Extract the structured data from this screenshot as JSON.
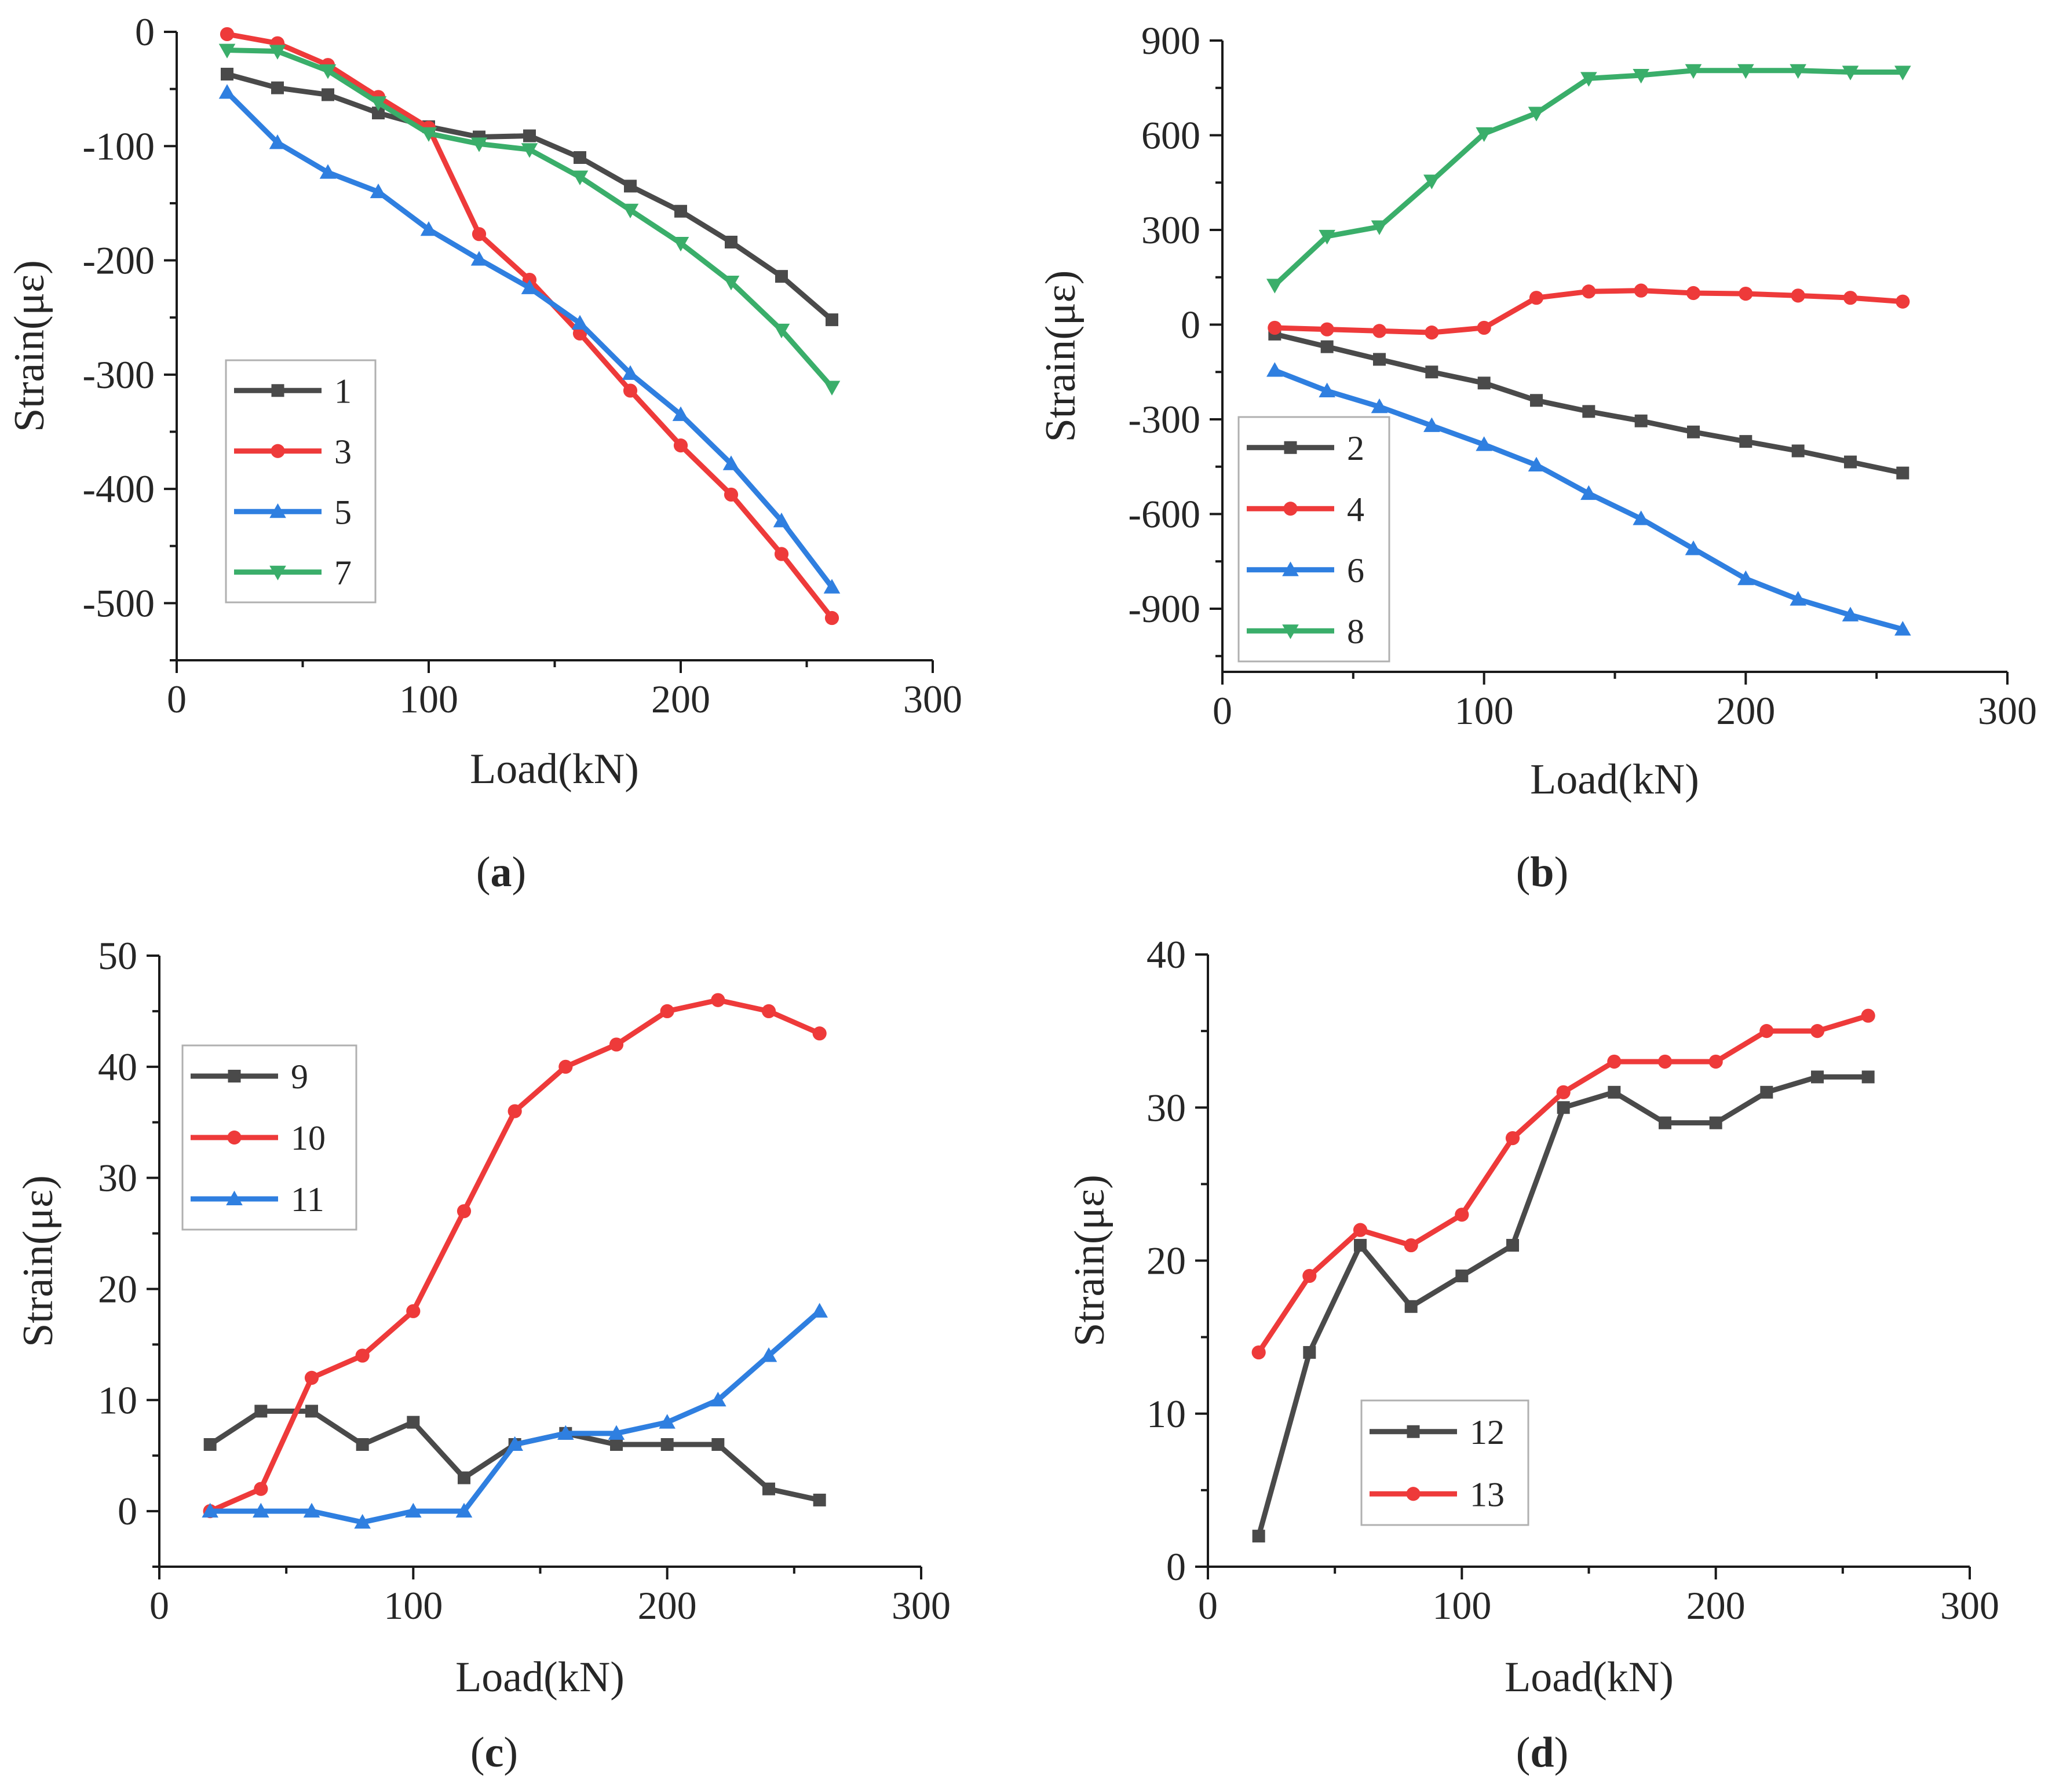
{
  "chart_data": [
    {
      "type": "line",
      "panel_label": "a",
      "xlabel": "Load(kN)",
      "ylabel": "Strain(με)",
      "xlim": [
        0,
        300
      ],
      "ylim": [
        -550,
        0
      ],
      "xticks": [
        0,
        100,
        200,
        300
      ],
      "yticks": [
        0,
        -100,
        -200,
        -300,
        -400,
        -500
      ],
      "x": [
        20,
        40,
        60,
        80,
        100,
        120,
        140,
        160,
        180,
        200,
        220,
        240,
        260
      ],
      "legend_position": "middle-left",
      "series": [
        {
          "name": "1",
          "color": "#4a4a4a",
          "marker": "square",
          "values": [
            -37,
            -49,
            -55,
            -71,
            -83,
            -92,
            -91,
            -110,
            -135,
            -157,
            -184,
            -214,
            -252
          ]
        },
        {
          "name": "3",
          "color": "#ee3a3a",
          "marker": "circle",
          "values": [
            -2,
            -10,
            -29,
            -57,
            -84,
            -177,
            -217,
            -264,
            -314,
            -362,
            -405,
            -457,
            -513
          ]
        },
        {
          "name": "5",
          "color": "#2f7fe0",
          "marker": "triangle-up",
          "values": [
            -53,
            -97,
            -123,
            -140,
            -173,
            -199,
            -224,
            -255,
            -299,
            -335,
            -378,
            -428,
            -486
          ]
        },
        {
          "name": "7",
          "color": "#3aae6a",
          "marker": "triangle-down",
          "values": [
            -16,
            -17,
            -34,
            -62,
            -89,
            -98,
            -103,
            -127,
            -156,
            -185,
            -219,
            -261,
            -311
          ]
        }
      ]
    },
    {
      "type": "line",
      "panel_label": "b",
      "xlabel": "Load(kN)",
      "ylabel": "Strain(με)",
      "xlim": [
        0,
        300
      ],
      "ylim": [
        -1100,
        900
      ],
      "xticks": [
        0,
        100,
        200,
        300
      ],
      "yticks": [
        900,
        600,
        300,
        0,
        -300,
        -600,
        -900
      ],
      "x": [
        20,
        40,
        60,
        80,
        100,
        120,
        140,
        160,
        180,
        200,
        220,
        240,
        260
      ],
      "legend_position": "bottom-left",
      "series": [
        {
          "name": "2",
          "color": "#4a4a4a",
          "marker": "square",
          "values": [
            -30,
            -70,
            -110,
            -150,
            -185,
            -240,
            -275,
            -305,
            -340,
            -370,
            -400,
            -435,
            -470
          ]
        },
        {
          "name": "4",
          "color": "#ee3a3a",
          "marker": "circle",
          "values": [
            -10,
            -15,
            -20,
            -25,
            -10,
            85,
            105,
            108,
            100,
            98,
            92,
            85,
            73
          ]
        },
        {
          "name": "6",
          "color": "#2f7fe0",
          "marker": "triangle-up",
          "values": [
            -145,
            -210,
            -260,
            -320,
            -380,
            -445,
            -535,
            -615,
            -710,
            -805,
            -870,
            -920,
            -965
          ]
        },
        {
          "name": "8",
          "color": "#3aae6a",
          "marker": "triangle-down",
          "values": [
            125,
            280,
            310,
            455,
            605,
            670,
            780,
            790,
            805,
            805,
            805,
            800,
            800
          ]
        }
      ]
    },
    {
      "type": "line",
      "panel_label": "c",
      "xlabel": "Load(kN)",
      "ylabel": "Strain(με)",
      "xlim": [
        0,
        300
      ],
      "ylim": [
        -5,
        50
      ],
      "xticks": [
        0,
        100,
        200,
        300
      ],
      "yticks": [
        0,
        10,
        20,
        30,
        40,
        50
      ],
      "x": [
        20,
        40,
        60,
        80,
        100,
        120,
        140,
        160,
        180,
        200,
        220,
        240,
        260
      ],
      "legend_position": "top-left",
      "series": [
        {
          "name": "9",
          "color": "#4a4a4a",
          "marker": "square",
          "values": [
            6,
            9,
            9,
            6,
            8,
            3,
            6,
            7,
            6,
            6,
            6,
            2,
            1
          ]
        },
        {
          "name": "10",
          "color": "#ee3a3a",
          "marker": "circle",
          "values": [
            0,
            2,
            12,
            14,
            18,
            27,
            36,
            40,
            42,
            45,
            46,
            45,
            43
          ]
        },
        {
          "name": "11",
          "color": "#2f7fe0",
          "marker": "triangle-up",
          "values": [
            0,
            0,
            0,
            -1,
            0,
            0,
            6,
            7,
            7,
            8,
            10,
            14,
            18
          ]
        }
      ]
    },
    {
      "type": "line",
      "panel_label": "d",
      "xlabel": "Load(kN)",
      "ylabel": "Strain(με)",
      "xlim": [
        0,
        300
      ],
      "ylim": [
        0,
        40
      ],
      "xticks": [
        0,
        100,
        200,
        300
      ],
      "yticks": [
        0,
        10,
        20,
        30,
        40
      ],
      "x": [
        20,
        40,
        60,
        80,
        100,
        120,
        140,
        160,
        180,
        200,
        220,
        240,
        260
      ],
      "legend_position": "bottom-left",
      "series": [
        {
          "name": "12",
          "color": "#4a4a4a",
          "marker": "square",
          "values": [
            2,
            14,
            21,
            17,
            19,
            21,
            30,
            31,
            29,
            29,
            31,
            32,
            32
          ]
        },
        {
          "name": "13",
          "color": "#ee3a3a",
          "marker": "circle",
          "values": [
            14,
            19,
            22,
            21,
            23,
            28,
            31,
            33,
            33,
            33,
            35,
            35,
            36
          ]
        }
      ]
    }
  ]
}
